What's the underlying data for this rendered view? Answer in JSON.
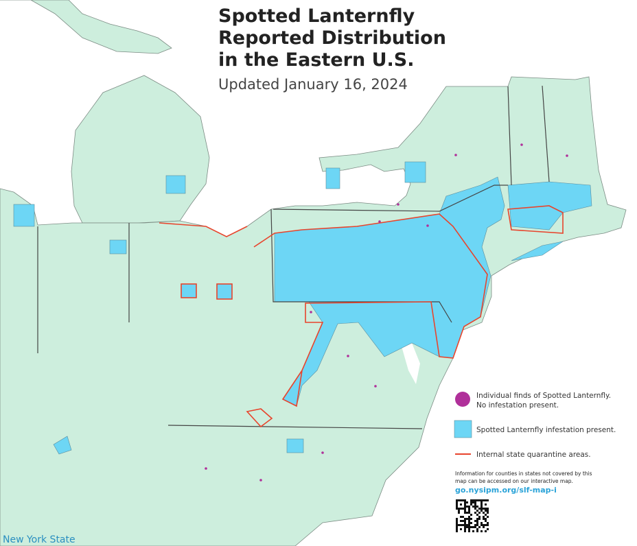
{
  "title": [
    "Spotted Lanternfly",
    "Reported Distribution",
    "in the Eastern U.S."
  ],
  "subtitle": "Updated January 16, 2024",
  "legend": [
    {
      "lines": [
        "Individual finds of Spotted Lanternfly.",
        "No infestation present."
      ]
    },
    {
      "lines": [
        "Spotted Lanternfly infestation present."
      ]
    },
    {
      "lines": [
        "Internal state quarantine areas."
      ]
    }
  ],
  "note": [
    "Information for counties in states not covered by this",
    "map can be accessed on our interactive map."
  ],
  "url": "go.nysipm.org/slf-map-i",
  "footer": "New York State"
}
